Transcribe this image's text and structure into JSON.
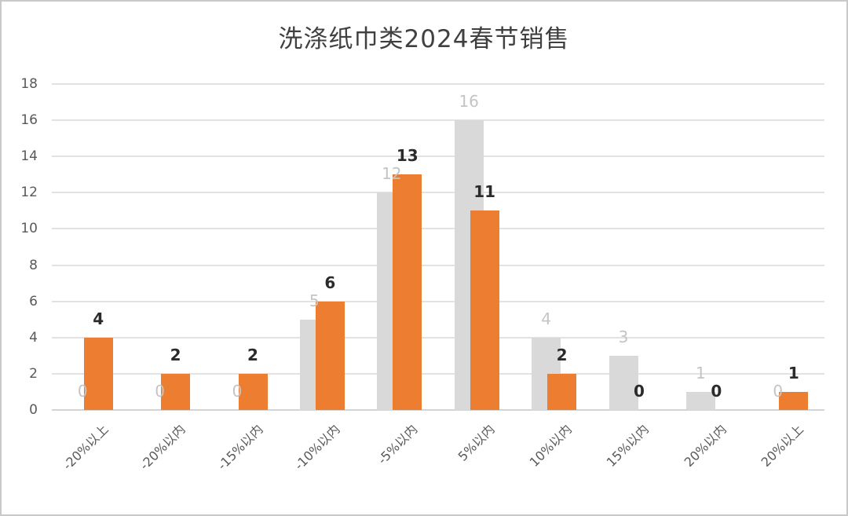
{
  "page": {
    "background": "#ffffff",
    "border_color": "#c9c9c9"
  },
  "chart_data": {
    "type": "bar",
    "title": "洗涤纸巾类2024春节销售",
    "categories": [
      "-20%以上",
      "-20%以内",
      "-15%以内",
      "-10%以内",
      "-5%以内",
      "5%以内",
      "10%以内",
      "15%以内",
      "20%以内",
      "20%以上"
    ],
    "series": [
      {
        "name": "gray",
        "color": "#d9d9d9",
        "label_color": "#c4c4c4",
        "values": [
          0,
          0,
          0,
          5,
          12,
          16,
          4,
          3,
          1,
          0
        ]
      },
      {
        "name": "orange",
        "color": "#ed7d31",
        "label_color": "#2b2b2b",
        "values": [
          4,
          2,
          2,
          6,
          13,
          11,
          2,
          0,
          0,
          1
        ]
      }
    ],
    "xlabel": "",
    "ylabel": "",
    "ylim": [
      0,
      18
    ],
    "yticks": [
      0,
      2,
      4,
      6,
      8,
      10,
      12,
      14,
      16,
      18
    ],
    "grid": true,
    "legend_position": "none",
    "bar_labels_shown": true
  }
}
